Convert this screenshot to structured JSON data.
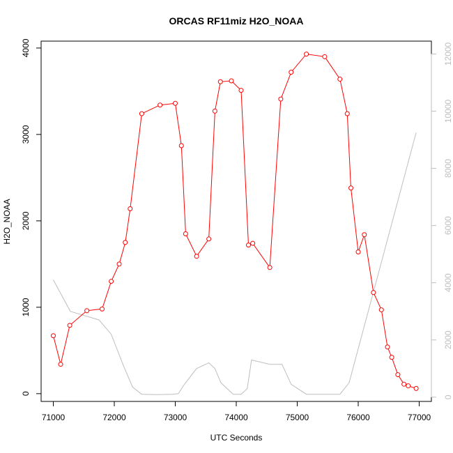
{
  "chart_data": {
    "type": "line",
    "title": "ORCAS RF11miz H2O_NOAA",
    "xlabel": "UTC Seconds",
    "ylabel": "H2O_NOAA",
    "xlim": [
      70800,
      77200
    ],
    "ylim": [
      -90,
      4080
    ],
    "y2lim": [
      -150,
      12450
    ],
    "x_ticks": [
      71000,
      72000,
      73000,
      74000,
      75000,
      76000,
      77000
    ],
    "y_ticks": [
      0,
      1000,
      2000,
      3000,
      4000
    ],
    "y2_ticks": [
      0,
      2000,
      4000,
      6000,
      8000,
      10000,
      12000
    ],
    "grid": false,
    "colors": {
      "primary": "#ff0000",
      "secondary": "#bebebe",
      "axis": "#000000"
    },
    "series": [
      {
        "axis": "left",
        "style": "line-with-circle-markers",
        "x": [
          71000,
          71120,
          71270,
          71550,
          71800,
          71950,
          72080,
          72180,
          72260,
          72450,
          72750,
          73000,
          73100,
          73170,
          73350,
          73550,
          73650,
          73740,
          73920,
          74080,
          74200,
          74270,
          74550,
          74730,
          74900,
          75150,
          75450,
          75700,
          75820,
          75880,
          76000,
          76100,
          76250,
          76380,
          76480,
          76550,
          76650,
          76750,
          76820,
          76950
        ],
        "y": [
          670,
          340,
          790,
          960,
          980,
          1300,
          1500,
          1750,
          2140,
          3240,
          3340,
          3360,
          2870,
          1850,
          1590,
          1790,
          3270,
          3610,
          3620,
          3510,
          1720,
          1740,
          1460,
          3410,
          3720,
          3930,
          3900,
          3640,
          3240,
          2380,
          1640,
          1840,
          1170,
          970,
          540,
          420,
          220,
          110,
          90,
          60
        ]
      },
      {
        "axis": "right",
        "style": "line",
        "x": [
          71000,
          71280,
          71750,
          71950,
          72150,
          72300,
          72450,
          72700,
          72950,
          73050,
          73150,
          73350,
          73550,
          73650,
          73750,
          73950,
          74080,
          74180,
          74250,
          74550,
          74750,
          74900,
          75150,
          75450,
          75700,
          75850,
          76950
        ],
        "y": [
          4100,
          3000,
          2700,
          2200,
          1100,
          350,
          100,
          90,
          100,
          120,
          450,
          1000,
          1200,
          1000,
          500,
          100,
          100,
          300,
          1300,
          1150,
          1150,
          450,
          100,
          100,
          100,
          500,
          9250
        ]
      }
    ]
  }
}
